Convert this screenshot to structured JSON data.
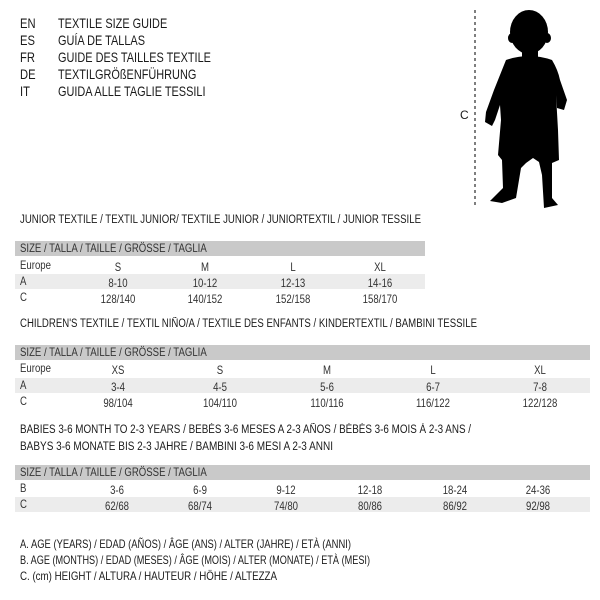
{
  "languages": [
    {
      "code": "EN",
      "title": "TEXTILE SIZE GUIDE"
    },
    {
      "code": "ES",
      "title": "GUÍA DE TALLAS"
    },
    {
      "code": "FR",
      "title": "GUIDE DES TAILLES TEXTILE"
    },
    {
      "code": "DE",
      "title": "TEXTILGRÖßENFÜHRUNG"
    },
    {
      "code": "IT",
      "title": "GUIDA ALLE TAGLIE TESSILI"
    }
  ],
  "figure": {
    "measure_label": "C"
  },
  "tables": [
    {
      "title_lines": [
        "JUNIOR TEXTILE / TEXTIL JUNIOR/ TEXTILE JUNIOR / JUNIORTEXTIL / JUNIOR TESSILE"
      ],
      "header": "SIZE / TALLA / TAILLE / GRÖSSE / TAGLIA",
      "rows": [
        {
          "label": "Europe",
          "values": [
            "S",
            "M",
            "L",
            "XL"
          ]
        },
        {
          "label": "A",
          "values": [
            "8-10",
            "10-12",
            "12-13",
            "14-16"
          ]
        },
        {
          "label": "C",
          "values": [
            "128/140",
            "140/152",
            "152/158",
            "158/170"
          ]
        }
      ]
    },
    {
      "title_lines": [
        "CHILDREN'S TEXTILE / TEXTIL NIÑO/A / TEXTILE DES ENFANTS / KINDERTEXTIL / BAMBINI TESSILE"
      ],
      "header": "SIZE / TALLA / TAILLE / GRÖSSE / TAGLIA",
      "rows": [
        {
          "label": "Europe",
          "values": [
            "XS",
            "S",
            "M",
            "L",
            "XL"
          ]
        },
        {
          "label": "A",
          "values": [
            "3-4",
            "4-5",
            "5-6",
            "6-7",
            "7-8"
          ]
        },
        {
          "label": "C",
          "values": [
            "98/104",
            "104/110",
            "110/116",
            "116/122",
            "122/128"
          ]
        }
      ]
    },
    {
      "title_lines": [
        "BABIES 3-6 MONTH TO 2-3 YEARS / BEBÉS 3-6 MESES A 2-3 AÑOS / BÉBÉS 3-6 MOIS À 2-3 ANS /",
        "BABYS 3-6 MONATE BIS 2-3 JAHRE / BAMBINI 3-6 MESI A 2-3 ANNI"
      ],
      "header": "SIZE / TALLA / TAILLE / GRÖSSE / TAGLIA",
      "rows": [
        {
          "label": "B",
          "values": [
            "3-6",
            "6-9",
            "9-12",
            "12-18",
            "18-24",
            "24-36"
          ]
        },
        {
          "label": "C",
          "values": [
            "62/68",
            "68/74",
            "74/80",
            "80/86",
            "86/92",
            "92/98"
          ]
        }
      ]
    }
  ],
  "legend": [
    "A. AGE (YEARS) / EDAD (AÑOS) / ÂGE (ANS) / ALTER (JAHRE) / ETÀ (ANNI)",
    "B. AGE (MONTHS) / EDAD (MESES) / ÂGE (MOIS) / ALTER (MONATE) / ETÀ (MESI)",
    "C. (cm) HEIGHT / ALTURA / HAUTEUR / HÖHE / ALTEZZA"
  ]
}
